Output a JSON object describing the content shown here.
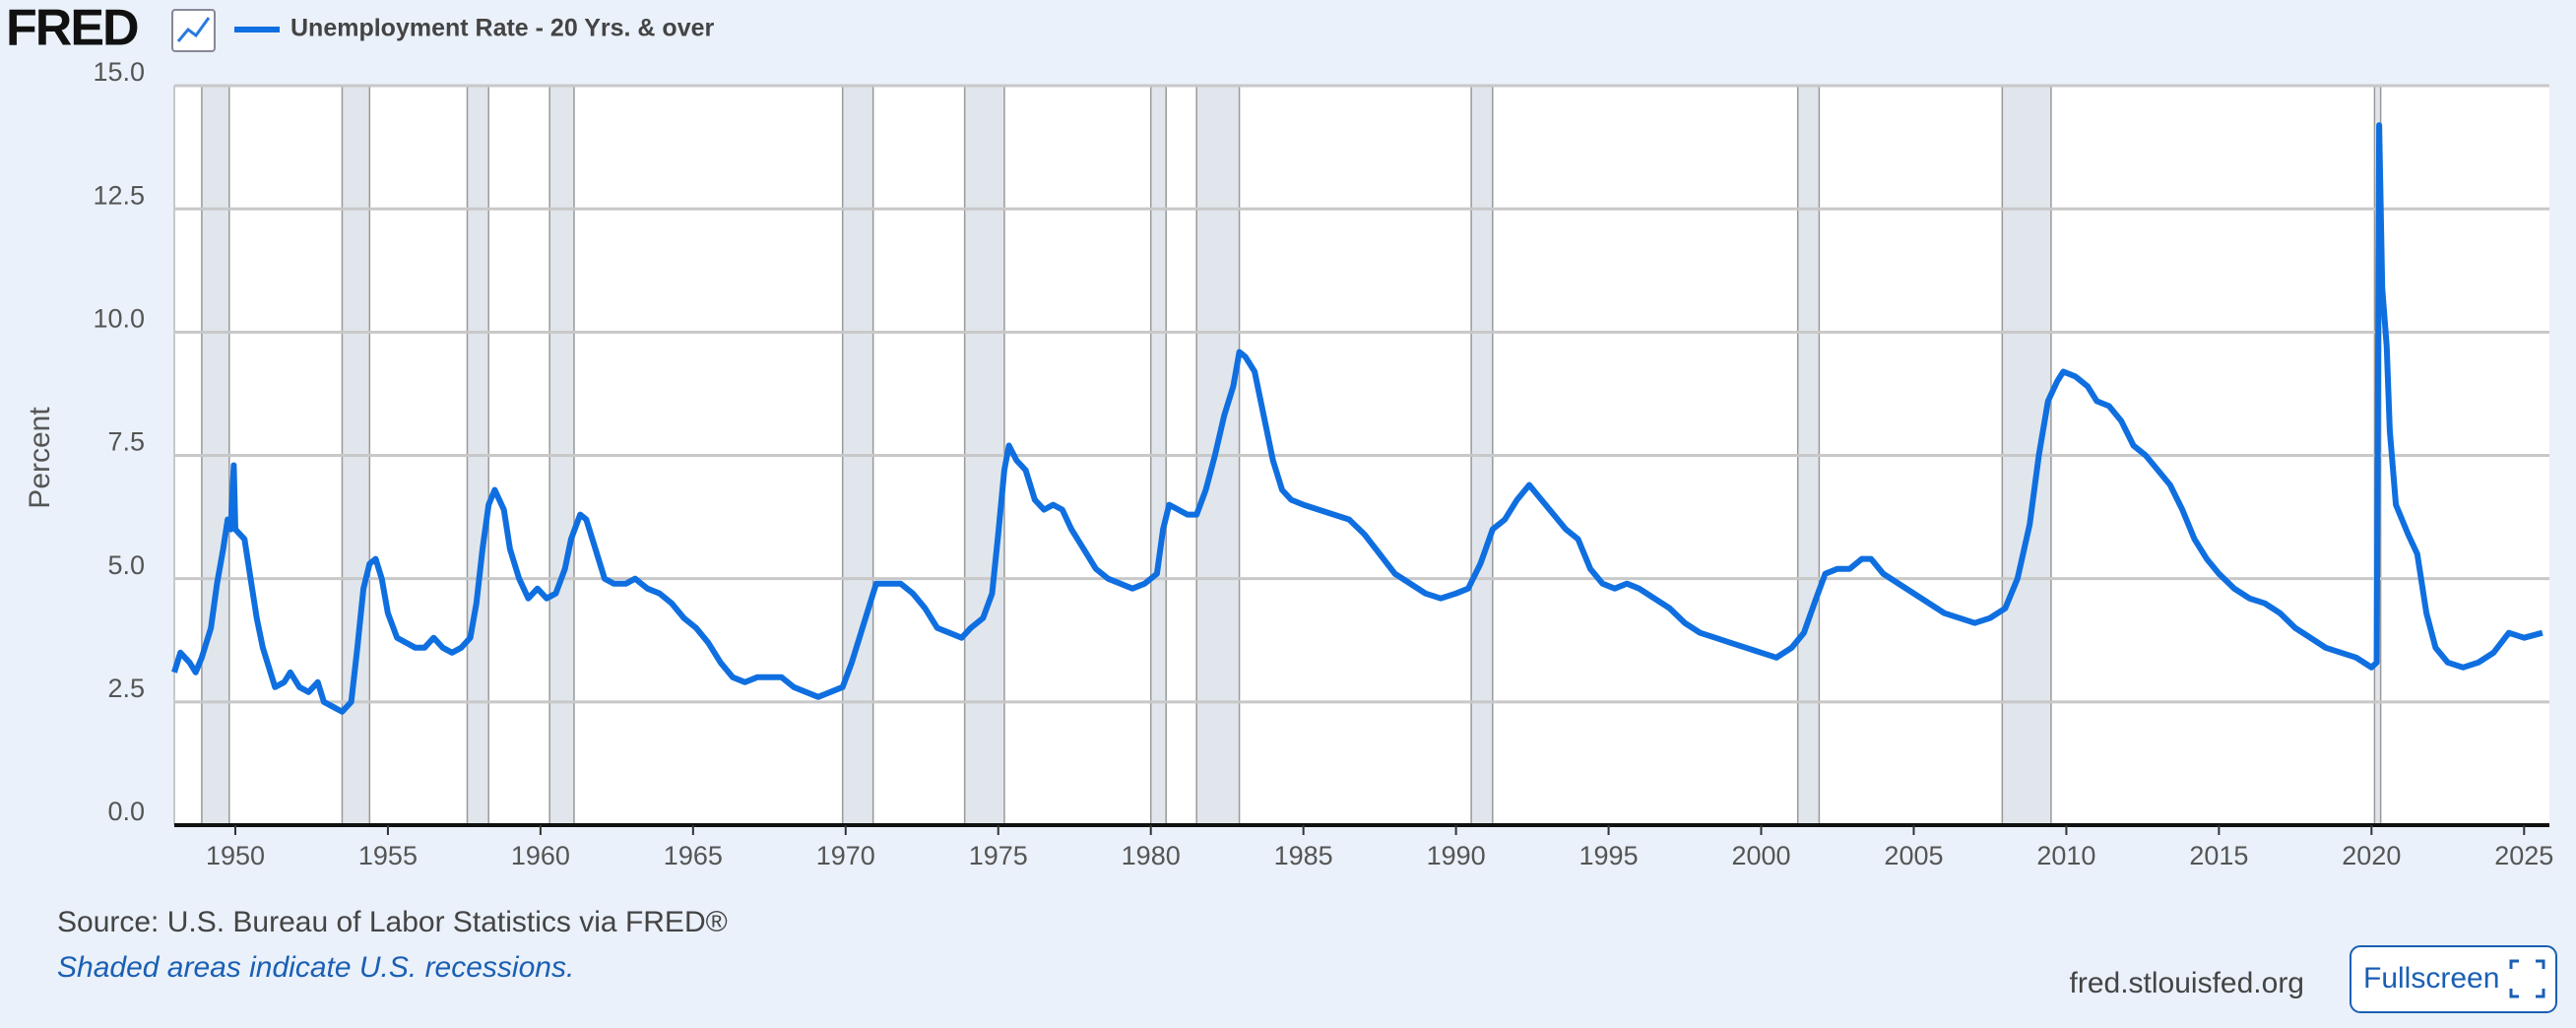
{
  "page": {
    "logo": "FRED",
    "source": "Source: U.S. Bureau of Labor Statistics via FRED®",
    "note": "Shaded areas indicate U.S. recessions.",
    "site": "fred.stlouisfed.org",
    "button": "Fullscreen"
  },
  "chart_data": {
    "type": "line",
    "ylabel": "Percent",
    "x": [
      1948.0,
      1948.2,
      1948.5,
      1948.7,
      1948.9,
      1949.2,
      1949.4,
      1949.6,
      1949.75,
      1949.85,
      1949.95,
      1950.0,
      1950.3,
      1950.5,
      1950.7,
      1950.9,
      1951.1,
      1951.3,
      1951.6,
      1951.8,
      1952.1,
      1952.4,
      1952.7,
      1952.9,
      1953.2,
      1953.5,
      1953.8,
      1954.0,
      1954.2,
      1954.4,
      1954.6,
      1954.8,
      1955.0,
      1955.3,
      1955.6,
      1955.9,
      1956.2,
      1956.5,
      1956.8,
      1957.1,
      1957.4,
      1957.7,
      1957.9,
      1958.1,
      1958.3,
      1958.5,
      1958.8,
      1959.0,
      1959.3,
      1959.6,
      1959.9,
      1960.2,
      1960.5,
      1960.8,
      1961.0,
      1961.3,
      1961.5,
      1961.8,
      1962.1,
      1962.4,
      1962.8,
      1963.1,
      1963.5,
      1963.9,
      1964.3,
      1964.7,
      1965.1,
      1965.5,
      1965.9,
      1966.3,
      1966.7,
      1967.1,
      1967.5,
      1967.9,
      1968.3,
      1968.7,
      1969.1,
      1969.5,
      1969.9,
      1970.2,
      1970.5,
      1970.8,
      1971.0,
      1971.4,
      1971.8,
      1972.2,
      1972.6,
      1973.0,
      1973.4,
      1973.8,
      1974.1,
      1974.5,
      1974.8,
      1975.0,
      1975.2,
      1975.35,
      1975.6,
      1975.9,
      1976.2,
      1976.5,
      1976.8,
      1977.1,
      1977.4,
      1977.8,
      1978.2,
      1978.6,
      1979.0,
      1979.4,
      1979.8,
      1980.2,
      1980.4,
      1980.6,
      1980.9,
      1981.2,
      1981.5,
      1981.8,
      1982.1,
      1982.4,
      1982.7,
      1982.9,
      1983.1,
      1983.4,
      1983.7,
      1984.0,
      1984.3,
      1984.6,
      1985.0,
      1985.5,
      1986.0,
      1986.5,
      1987.0,
      1987.5,
      1988.0,
      1988.5,
      1989.0,
      1989.5,
      1990.0,
      1990.4,
      1990.8,
      1991.2,
      1991.6,
      1992.0,
      1992.4,
      1992.8,
      1993.2,
      1993.6,
      1994.0,
      1994.4,
      1994.8,
      1995.2,
      1995.6,
      1996.0,
      1996.5,
      1997.0,
      1997.5,
      1998.0,
      1998.5,
      1999.0,
      1999.5,
      2000.0,
      2000.5,
      2001.0,
      2001.4,
      2001.8,
      2002.1,
      2002.5,
      2002.9,
      2003.3,
      2003.6,
      2004.0,
      2004.5,
      2005.0,
      2005.5,
      2006.0,
      2006.5,
      2007.0,
      2007.5,
      2008.0,
      2008.4,
      2008.8,
      2009.1,
      2009.4,
      2009.7,
      2009.9,
      2010.3,
      2010.7,
      2011.0,
      2011.4,
      2011.8,
      2012.2,
      2012.6,
      2013.0,
      2013.4,
      2013.8,
      2014.2,
      2014.6,
      2015.0,
      2015.5,
      2016.0,
      2016.5,
      2017.0,
      2017.5,
      2018.0,
      2018.5,
      2019.0,
      2019.5,
      2020.0,
      2020.17,
      2020.25,
      2020.35,
      2020.5,
      2020.6,
      2020.8,
      2021.2,
      2021.5,
      2021.8,
      2022.1,
      2022.5,
      2023.0,
      2023.5,
      2024.0,
      2024.5,
      2025.0,
      2025.6
    ],
    "series": [
      {
        "name": "Unemployment Rate - 20 Yrs. & over",
        "color": "#0f6fe0",
        "values": [
          3.1,
          3.5,
          3.3,
          3.1,
          3.4,
          4.0,
          4.9,
          5.6,
          6.2,
          6.0,
          7.3,
          6.0,
          5.8,
          5.0,
          4.2,
          3.6,
          3.2,
          2.8,
          2.9,
          3.1,
          2.8,
          2.7,
          2.9,
          2.5,
          2.4,
          2.3,
          2.5,
          3.6,
          4.8,
          5.3,
          5.4,
          5.0,
          4.3,
          3.8,
          3.7,
          3.6,
          3.6,
          3.8,
          3.6,
          3.5,
          3.6,
          3.8,
          4.5,
          5.6,
          6.5,
          6.8,
          6.4,
          5.6,
          5.0,
          4.6,
          4.8,
          4.6,
          4.7,
          5.2,
          5.8,
          6.3,
          6.2,
          5.6,
          5.0,
          4.9,
          4.9,
          5.0,
          4.8,
          4.7,
          4.5,
          4.2,
          4.0,
          3.7,
          3.3,
          3.0,
          2.9,
          3.0,
          3.0,
          3.0,
          2.8,
          2.7,
          2.6,
          2.7,
          2.8,
          3.3,
          3.9,
          4.5,
          4.9,
          4.9,
          4.9,
          4.7,
          4.4,
          4.0,
          3.9,
          3.8,
          4.0,
          4.2,
          4.7,
          5.9,
          7.2,
          7.7,
          7.4,
          7.2,
          6.6,
          6.4,
          6.5,
          6.4,
          6.0,
          5.6,
          5.2,
          5.0,
          4.9,
          4.8,
          4.9,
          5.1,
          6.0,
          6.5,
          6.4,
          6.3,
          6.3,
          6.8,
          7.5,
          8.3,
          8.9,
          9.6,
          9.5,
          9.2,
          8.3,
          7.4,
          6.8,
          6.6,
          6.5,
          6.4,
          6.3,
          6.2,
          5.9,
          5.5,
          5.1,
          4.9,
          4.7,
          4.6,
          4.7,
          4.8,
          5.3,
          6.0,
          6.2,
          6.6,
          6.9,
          6.6,
          6.3,
          6.0,
          5.8,
          5.2,
          4.9,
          4.8,
          4.9,
          4.8,
          4.6,
          4.4,
          4.1,
          3.9,
          3.8,
          3.7,
          3.6,
          3.5,
          3.4,
          3.6,
          3.9,
          4.6,
          5.1,
          5.2,
          5.2,
          5.4,
          5.4,
          5.1,
          4.9,
          4.7,
          4.5,
          4.3,
          4.2,
          4.1,
          4.2,
          4.4,
          5.0,
          6.1,
          7.5,
          8.6,
          9.0,
          9.2,
          9.1,
          8.9,
          8.6,
          8.5,
          8.2,
          7.7,
          7.5,
          7.2,
          6.9,
          6.4,
          5.8,
          5.4,
          5.1,
          4.8,
          4.6,
          4.5,
          4.3,
          4.0,
          3.8,
          3.6,
          3.5,
          3.4,
          3.2,
          3.3,
          14.2,
          10.9,
          9.7,
          8.0,
          6.5,
          5.9,
          5.5,
          4.3,
          3.6,
          3.3,
          3.2,
          3.3,
          3.5,
          3.9,
          3.8,
          3.9
        ]
      }
    ],
    "recessions": [
      [
        1948.9,
        1949.8
      ],
      [
        1953.5,
        1954.4
      ],
      [
        1957.6,
        1958.3
      ],
      [
        1960.3,
        1961.1
      ],
      [
        1969.9,
        1970.9
      ],
      [
        1973.9,
        1975.2
      ],
      [
        1980.0,
        1980.5
      ],
      [
        1981.5,
        1982.9
      ],
      [
        1990.5,
        1991.2
      ],
      [
        2001.2,
        2001.9
      ],
      [
        2007.9,
        2009.5
      ],
      [
        2020.1,
        2020.3
      ]
    ],
    "xlim": [
      1948,
      2025.83
    ],
    "ylim": [
      0,
      15
    ],
    "xticks": [
      1950,
      1955,
      1960,
      1965,
      1970,
      1975,
      1980,
      1985,
      1990,
      1995,
      2000,
      2005,
      2010,
      2015,
      2020,
      2025
    ],
    "yticks": [
      {
        "value": 0,
        "label": "0.0"
      },
      2.5,
      {
        "value": 5,
        "label": "5.0"
      },
      7.5,
      {
        "value": 10,
        "label": "10.0"
      },
      12.5,
      {
        "value": 15,
        "label": "15.0"
      }
    ],
    "grid": true
  }
}
